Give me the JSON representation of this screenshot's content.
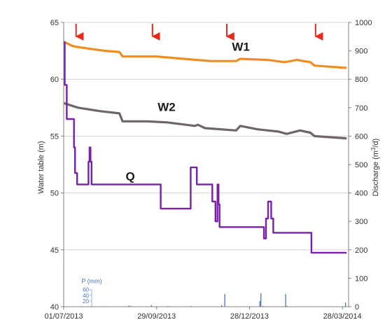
{
  "chart_data": {
    "type": "line",
    "x_axis": {
      "type": "date",
      "range": [
        "2013-07-01",
        "2014-04-03"
      ],
      "tick_labels": [
        "01/07/2013",
        "29/09/2013",
        "28/12/2013",
        "28/03/2014"
      ],
      "tick_dates": [
        "2013-07-01",
        "2013-09-29",
        "2013-12-28",
        "2014-03-28"
      ]
    },
    "y_left": {
      "label": "Water table (m)",
      "range": [
        40,
        65
      ],
      "ticks": [
        40,
        45,
        50,
        55,
        60,
        65
      ]
    },
    "y_right": {
      "label_prefix": "Discharge (m",
      "label_sup": "3",
      "label_suffix": "/d)",
      "range": [
        0,
        1000
      ],
      "ticks": [
        0,
        100,
        200,
        300,
        400,
        500,
        600,
        700,
        800,
        900,
        1000
      ]
    },
    "grid": "horizontal",
    "colors": {
      "W1": "#f28c1e",
      "W2": "#6d6566",
      "Q": "#7a1fa8",
      "P": "#4a72c6",
      "arrows": "#e8291c",
      "grid": "#d4d4d4"
    },
    "series": [
      {
        "name": "W1",
        "axis": "left",
        "points": [
          [
            "2013-07-01",
            63.3
          ],
          [
            "2013-07-10",
            62.9
          ],
          [
            "2013-07-25",
            62.7
          ],
          [
            "2013-08-10",
            62.5
          ],
          [
            "2013-08-24",
            62.4
          ],
          [
            "2013-08-27",
            62.0
          ],
          [
            "2013-09-29",
            62.0
          ],
          [
            "2013-10-25",
            61.8
          ],
          [
            "2013-11-20",
            61.6
          ],
          [
            "2013-12-15",
            61.6
          ],
          [
            "2013-12-19",
            61.8
          ],
          [
            "2014-01-15",
            61.7
          ],
          [
            "2014-01-31",
            61.5
          ],
          [
            "2014-02-12",
            61.7
          ],
          [
            "2014-02-25",
            61.5
          ],
          [
            "2014-03-01",
            61.2
          ],
          [
            "2014-04-01",
            61.0
          ]
        ]
      },
      {
        "name": "W2",
        "axis": "left",
        "points": [
          [
            "2013-07-01",
            57.9
          ],
          [
            "2013-07-15",
            57.5
          ],
          [
            "2013-08-05",
            57.2
          ],
          [
            "2013-08-24",
            57.0
          ],
          [
            "2013-08-27",
            56.3
          ],
          [
            "2013-09-20",
            56.3
          ],
          [
            "2013-10-10",
            56.2
          ],
          [
            "2013-11-05",
            55.9
          ],
          [
            "2013-11-08",
            56.0
          ],
          [
            "2013-11-15",
            55.7
          ],
          [
            "2013-12-15",
            55.5
          ],
          [
            "2013-12-19",
            55.9
          ],
          [
            "2014-01-05",
            55.6
          ],
          [
            "2014-01-25",
            55.4
          ],
          [
            "2014-02-02",
            55.2
          ],
          [
            "2014-02-15",
            55.5
          ],
          [
            "2014-02-25",
            55.3
          ],
          [
            "2014-03-01",
            55.0
          ],
          [
            "2014-04-01",
            54.8
          ]
        ]
      },
      {
        "name": "Q",
        "axis": "right",
        "step": true,
        "points": [
          [
            "2013-07-01",
            930
          ],
          [
            "2013-07-02",
            780
          ],
          [
            "2013-07-04",
            660
          ],
          [
            "2013-07-10",
            660
          ],
          [
            "2013-07-11",
            560
          ],
          [
            "2013-07-12",
            470
          ],
          [
            "2013-07-14",
            430
          ],
          [
            "2013-07-24",
            430
          ],
          [
            "2013-07-25",
            510
          ],
          [
            "2013-07-26",
            560
          ],
          [
            "2013-07-27",
            510
          ],
          [
            "2013-07-28",
            430
          ],
          [
            "2013-10-02",
            430
          ],
          [
            "2013-10-03",
            345
          ],
          [
            "2013-10-31",
            345
          ],
          [
            "2013-11-01",
            490
          ],
          [
            "2013-11-06",
            490
          ],
          [
            "2013-11-07",
            430
          ],
          [
            "2013-11-21",
            430
          ],
          [
            "2013-11-22",
            370
          ],
          [
            "2013-11-25",
            300
          ],
          [
            "2013-11-27",
            430
          ],
          [
            "2013-11-28",
            360
          ],
          [
            "2013-11-29",
            280
          ],
          [
            "2013-12-22",
            280
          ],
          [
            "2014-01-10",
            280
          ],
          [
            "2014-01-11",
            240
          ],
          [
            "2014-01-13",
            310
          ],
          [
            "2014-01-15",
            370
          ],
          [
            "2014-01-18",
            310
          ],
          [
            "2014-01-20",
            260
          ],
          [
            "2014-02-25",
            260
          ],
          [
            "2014-02-26",
            190
          ],
          [
            "2014-04-01",
            190
          ]
        ]
      },
      {
        "name": "P",
        "axis": "right",
        "type": "bar",
        "points": [
          [
            "2013-07-21",
            0.5
          ],
          [
            "2013-08-11",
            1.5
          ],
          [
            "2013-08-13",
            1.2
          ],
          [
            "2013-08-26",
            1.0
          ],
          [
            "2013-09-02",
            4.0
          ],
          [
            "2013-09-04",
            3.2
          ],
          [
            "2013-09-19",
            1.5
          ],
          [
            "2013-09-24",
            5.5
          ],
          [
            "2013-10-10",
            2.5
          ],
          [
            "2013-11-01",
            2.5
          ],
          [
            "2013-12-01",
            5.5
          ],
          [
            "2013-12-04",
            45.0
          ],
          [
            "2014-01-07",
            20.0
          ],
          [
            "2014-01-08",
            47.0
          ],
          [
            "2014-01-10",
            3.0
          ],
          [
            "2014-01-25",
            1.0
          ],
          [
            "2014-01-31",
            1.5
          ],
          [
            "2014-02-01",
            45.0
          ],
          [
            "2014-02-02",
            3.0
          ],
          [
            "2014-02-16",
            1.0
          ],
          [
            "2014-03-31",
            15.0
          ]
        ]
      }
    ],
    "precip_axis": {
      "label": "P (mm)",
      "ticks": [
        "20",
        "40",
        "60"
      ]
    },
    "series_labels": {
      "W1": "W1",
      "W2": "W2",
      "Q": "Q"
    },
    "arrows_at": [
      "2013-07-13",
      "2013-09-25",
      "2013-12-06",
      "2014-03-02"
    ]
  }
}
